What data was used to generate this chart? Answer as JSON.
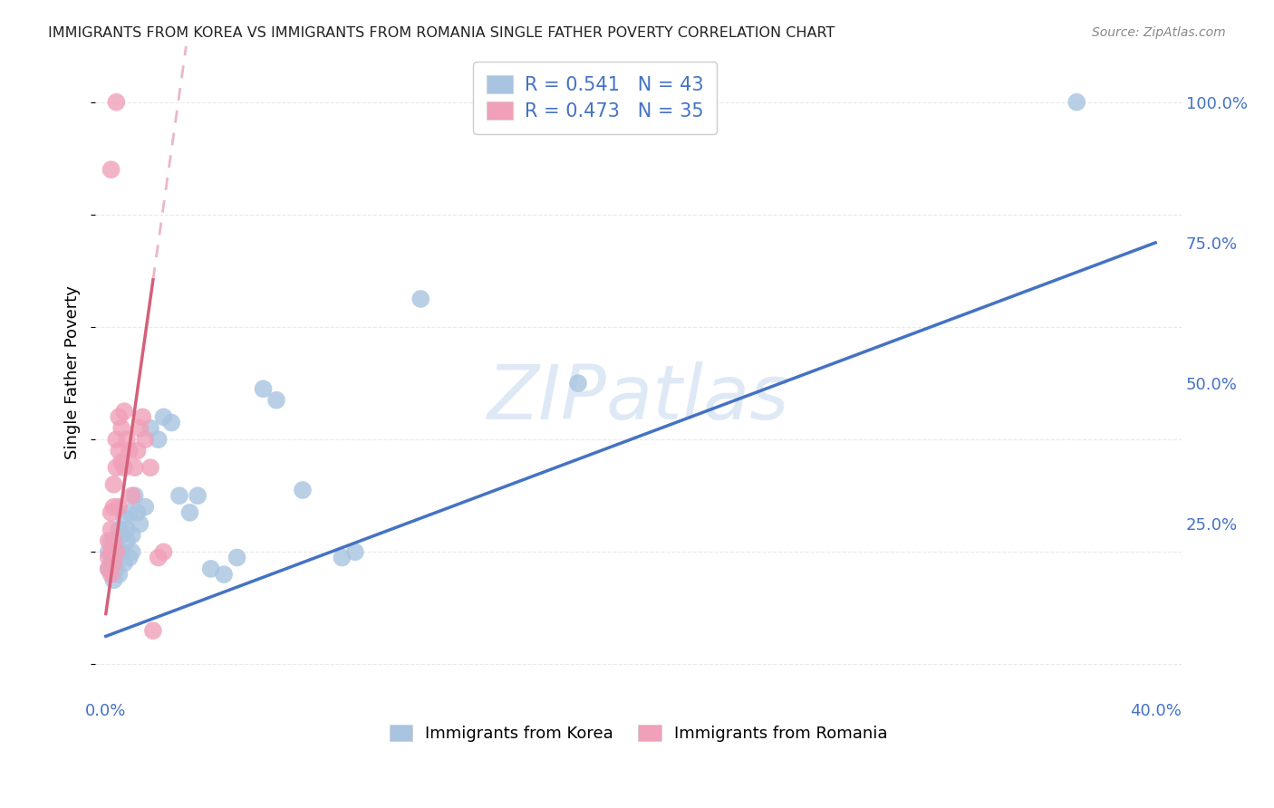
{
  "title": "IMMIGRANTS FROM KOREA VS IMMIGRANTS FROM ROMANIA SINGLE FATHER POVERTY CORRELATION CHART",
  "source": "Source: ZipAtlas.com",
  "ylabel": "Single Father Poverty",
  "korea_R": "0.541",
  "korea_N": "43",
  "romania_R": "0.473",
  "romania_N": "35",
  "korea_color": "#a8c4e0",
  "romania_color": "#f0a0b8",
  "korea_line_color": "#4472c4",
  "romania_line_color": "#d4607a",
  "watermark_text": "ZIPatlas",
  "korea_x": [
    0.001,
    0.001,
    0.002,
    0.002,
    0.003,
    0.003,
    0.003,
    0.004,
    0.004,
    0.005,
    0.005,
    0.006,
    0.006,
    0.007,
    0.007,
    0.008,
    0.008,
    0.009,
    0.009,
    0.01,
    0.01,
    0.011,
    0.012,
    0.013,
    0.015,
    0.017,
    0.02,
    0.022,
    0.025,
    0.028,
    0.032,
    0.035,
    0.04,
    0.045,
    0.05,
    0.06,
    0.065,
    0.075,
    0.09,
    0.095,
    0.12,
    0.18,
    0.37
  ],
  "korea_y": [
    0.17,
    0.2,
    0.18,
    0.22,
    0.15,
    0.19,
    0.22,
    0.17,
    0.21,
    0.16,
    0.24,
    0.2,
    0.23,
    0.18,
    0.26,
    0.22,
    0.24,
    0.19,
    0.27,
    0.2,
    0.23,
    0.3,
    0.27,
    0.25,
    0.28,
    0.42,
    0.4,
    0.44,
    0.43,
    0.3,
    0.27,
    0.3,
    0.17,
    0.16,
    0.19,
    0.49,
    0.47,
    0.31,
    0.19,
    0.2,
    0.65,
    0.5,
    1.0
  ],
  "romania_x": [
    0.001,
    0.001,
    0.001,
    0.002,
    0.002,
    0.002,
    0.002,
    0.003,
    0.003,
    0.003,
    0.003,
    0.004,
    0.004,
    0.004,
    0.005,
    0.005,
    0.005,
    0.006,
    0.006,
    0.007,
    0.007,
    0.008,
    0.009,
    0.01,
    0.011,
    0.012,
    0.013,
    0.014,
    0.015,
    0.017,
    0.018,
    0.02,
    0.022,
    0.002,
    0.004
  ],
  "romania_y": [
    0.17,
    0.19,
    0.22,
    0.16,
    0.2,
    0.24,
    0.27,
    0.18,
    0.22,
    0.28,
    0.32,
    0.2,
    0.35,
    0.4,
    0.38,
    0.44,
    0.28,
    0.42,
    0.36,
    0.45,
    0.35,
    0.4,
    0.38,
    0.3,
    0.35,
    0.38,
    0.42,
    0.44,
    0.4,
    0.35,
    0.06,
    0.19,
    0.2,
    0.88,
    1.0
  ],
  "xlim_min": -0.004,
  "xlim_max": 0.41,
  "ylim_min": -0.06,
  "ylim_max": 1.1,
  "xticks": [
    0.0,
    0.1,
    0.2,
    0.3,
    0.4
  ],
  "xticklabels": [
    "0.0%",
    "",
    "",
    "",
    "40.0%"
  ],
  "yticks_right": [
    0.25,
    0.5,
    0.75,
    1.0
  ],
  "yticklabels_right": [
    "25.0%",
    "50.0%",
    "75.0%",
    "100.0%"
  ],
  "grid_color": "#e0e0e0",
  "background_color": "#ffffff",
  "tick_color": "#4472c4"
}
